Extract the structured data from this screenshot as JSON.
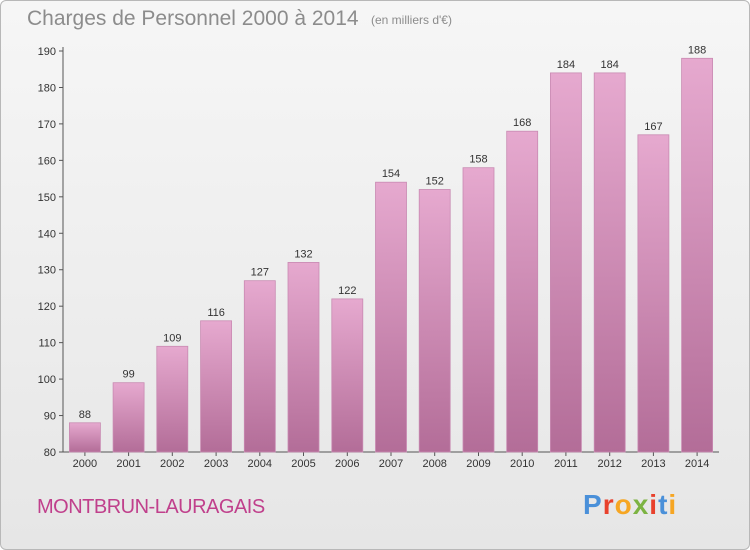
{
  "header": {
    "title": "Charges de Personnel 2000 à 2014",
    "subtitle": "(en milliers d'€)"
  },
  "footer": {
    "commune": "MONTBRUN-LAURAGAIS",
    "brand": "Proxiti",
    "brand_colors": [
      "#4a90d9",
      "#e8412c",
      "#f6a623",
      "#7cb342",
      "#e8412c",
      "#4a90d9",
      "#f6a623"
    ]
  },
  "colors": {
    "bar_top": "#e6a9cf",
    "bar_bottom": "#b36d98",
    "bar_edge": "#c98ab2",
    "commune_text": "#c0408c"
  },
  "chart_data": {
    "type": "bar",
    "title": "Charges de Personnel 2000 à 2014",
    "subtitle": "(en milliers d'€)",
    "categories": [
      "2000",
      "2001",
      "2002",
      "2003",
      "2004",
      "2005",
      "2006",
      "2007",
      "2008",
      "2009",
      "2010",
      "2011",
      "2012",
      "2013",
      "2014"
    ],
    "values": [
      88,
      99,
      109,
      116,
      127,
      132,
      122,
      154,
      152,
      158,
      168,
      184,
      184,
      167,
      188
    ],
    "ylim": [
      80,
      190
    ],
    "yticks": [
      80,
      90,
      100,
      110,
      120,
      130,
      140,
      150,
      160,
      170,
      180,
      190
    ],
    "grid": false,
    "data_labels": true
  }
}
